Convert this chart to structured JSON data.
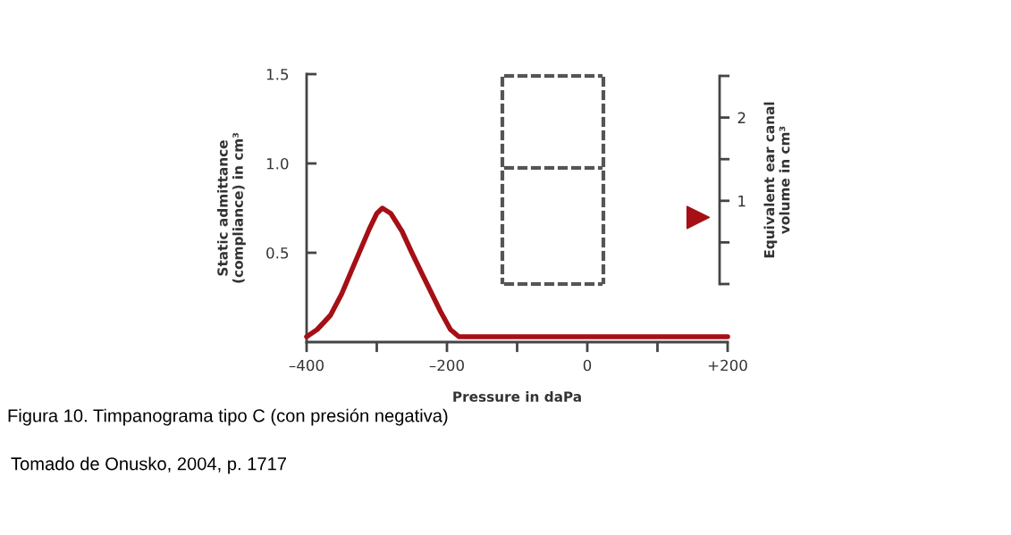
{
  "chart_data": {
    "type": "line",
    "xlabel": "Pressure in daPa",
    "ylabel": "Static admittance\n(compliance) in cm³",
    "y2label": "Equivalent ear canal\nvolume in cm³",
    "series": [
      {
        "color": "#a50f15",
        "x": [
          -400,
          -385,
          -366,
          -350,
          -336,
          -311,
          -300,
          -292,
          -280,
          -264,
          -250,
          -234,
          -209,
          -195,
          -183,
          200
        ],
        "values": [
          0.03,
          0.07,
          0.15,
          0.27,
          0.4,
          0.63,
          0.72,
          0.75,
          0.72,
          0.62,
          0.5,
          0.37,
          0.17,
          0.07,
          0.03,
          0.03
        ]
      },
      {
        "type": "scatter",
        "axis": "y2",
        "marker": "triangle",
        "color": "#a50f15",
        "x": [
          158
        ],
        "values": [
          0.8
        ]
      }
    ],
    "xlim": [
      -400,
      200
    ],
    "xticks": [
      {
        "value": -400,
        "label": "–400"
      },
      {
        "value": -300,
        "label": null
      },
      {
        "value": -200,
        "label": "–200"
      },
      {
        "value": -100,
        "label": null
      },
      0,
      {
        "value": 100,
        "label": null
      },
      {
        "value": 200,
        "label": "+200"
      }
    ],
    "ylim": [
      0,
      1.5
    ],
    "yticks": [
      {
        "value": 0.5,
        "label": "0.5"
      },
      {
        "value": 1.0,
        "label": "1.0"
      },
      {
        "value": 1.5,
        "label": "1.5"
      }
    ],
    "y2lim": [
      0,
      2.5
    ],
    "y2ticks": [
      {
        "value": 0,
        "label": null
      },
      {
        "value": 0.5,
        "label": null
      },
      1,
      {
        "value": 1.5,
        "label": null
      },
      2,
      {
        "value": 2.5,
        "label": null
      }
    ],
    "annotations": [
      "Figura 10. Timpanograma tipo C (con presión negativa)",
      "Tomado de Onusko, 2004, p. 1717"
    ]
  }
}
